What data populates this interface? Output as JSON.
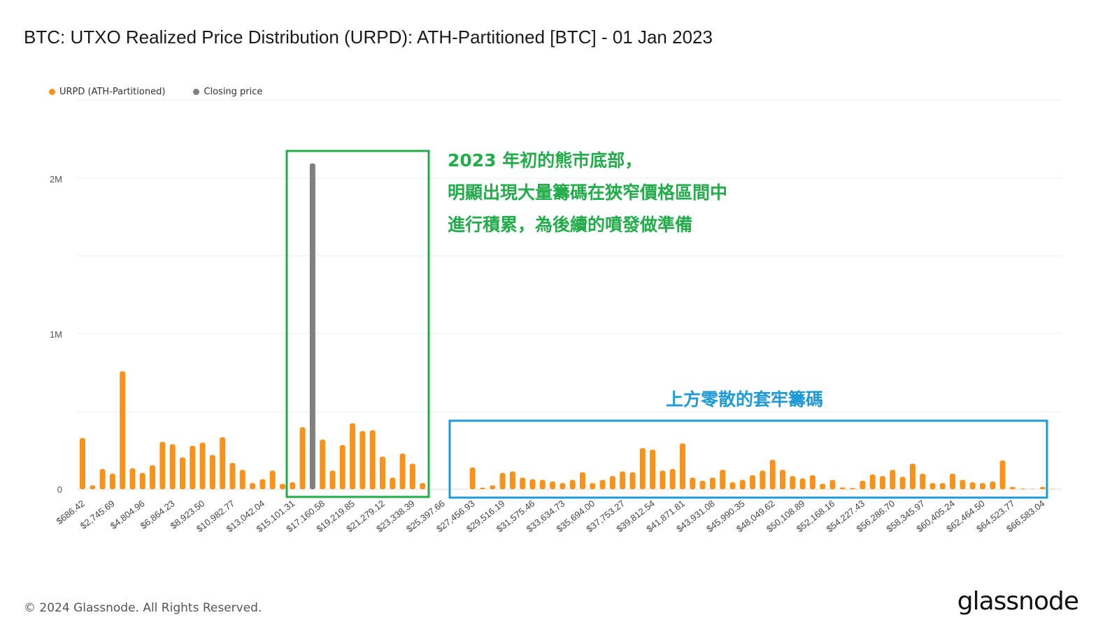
{
  "title": "BTC: UTXO Realized Price Distribution (URPD): ATH-Partitioned [BTC] - 01 Jan 2023",
  "legend": [
    {
      "label": "URPD (ATH-Partitioned)",
      "color": "#f7931a"
    },
    {
      "label": "Closing price",
      "color": "#808080"
    }
  ],
  "footer": {
    "copyright": "© 2024 Glassnode. All Rights Reserved.",
    "brand": "glassnode"
  },
  "annotations": {
    "green_box": {
      "color": "#22ad4a",
      "lines": [
        "2023 年初的熊市底部，",
        "明顯出現大量籌碼在狹窄價格區間中",
        "進行積累，為後續的噴發做準備"
      ]
    },
    "blue_box": {
      "color": "#1e9ad6",
      "lines": [
        "上方零散的套牢籌碼"
      ]
    }
  },
  "chart_data": {
    "type": "bar",
    "title": "BTC: UTXO Realized Price Distribution (URPD): ATH-Partitioned [BTC] - 01 Jan 2023",
    "xlabel": "",
    "ylabel": "",
    "ylim": [
      0,
      2500000
    ],
    "yticks": [
      {
        "value": 0,
        "label": "0"
      },
      {
        "value": 1000000,
        "label": "1M"
      },
      {
        "value": 2000000,
        "label": "2M"
      }
    ],
    "grid": true,
    "legend_position": "top-left",
    "x_tick_labels": [
      "$686.42",
      "$2,745.69",
      "$4,804.96",
      "$6,864.23",
      "$8,923.50",
      "$10,982.77",
      "$13,042.04",
      "$15,101.31",
      "$17,160.58",
      "$19,219.85",
      "$21,279.12",
      "$23,338.39",
      "$25,397.66",
      "$27,456.93",
      "$29,516.19",
      "$31,575.46",
      "$33,634.73",
      "$35,694.00",
      "$37,753.27",
      "$39,812.54",
      "$41,871.81",
      "$43,931.08",
      "$45,990.35",
      "$48,049.62",
      "$50,108.89",
      "$52,168.16",
      "$54,227.43",
      "$56,286.70",
      "$58,345.97",
      "$60,405.24",
      "$62,464.50",
      "$64,523.77",
      "$66,583.04"
    ],
    "bin_start": 686.42,
    "bin_width": 686.42,
    "closing_price_bin": 23,
    "closing_price_value": 2100000,
    "series": [
      {
        "name": "URPD (ATH-Partitioned)",
        "color": "#f7931a",
        "values": [
          330000,
          25000,
          130000,
          100000,
          760000,
          135000,
          105000,
          155000,
          305000,
          290000,
          205000,
          280000,
          300000,
          220000,
          335000,
          170000,
          125000,
          40000,
          65000,
          120000,
          35000,
          45000,
          400000,
          0,
          320000,
          120000,
          285000,
          425000,
          375000,
          380000,
          210000,
          75000,
          230000,
          165000,
          40000,
          0,
          0,
          0,
          0,
          140000,
          10000,
          25000,
          105000,
          115000,
          75000,
          65000,
          60000,
          50000,
          40000,
          60000,
          110000,
          40000,
          60000,
          85000,
          115000,
          110000,
          265000,
          255000,
          120000,
          130000,
          295000,
          75000,
          55000,
          75000,
          125000,
          45000,
          60000,
          90000,
          120000,
          190000,
          125000,
          85000,
          70000,
          90000,
          35000,
          60000,
          12000,
          8000,
          55000,
          95000,
          85000,
          125000,
          80000,
          165000,
          100000,
          40000,
          40000,
          100000,
          60000,
          45000,
          40000,
          50000,
          185000,
          15000,
          4000,
          2000,
          15000,
          2000
        ]
      }
    ]
  }
}
